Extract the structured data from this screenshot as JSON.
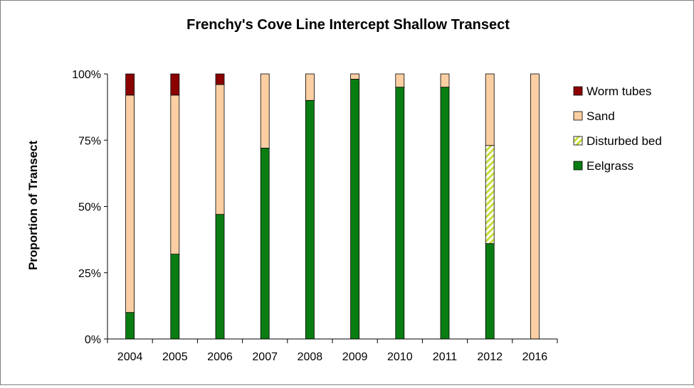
{
  "chart_data": {
    "type": "bar",
    "stacked": true,
    "normalized": true,
    "title": "Frenchy's Cove Line Intercept Shallow Transect",
    "xlabel": "",
    "ylabel": "Proportion of Transect",
    "ylim": [
      0,
      1
    ],
    "yticks": [
      "0%",
      "25%",
      "50%",
      "75%",
      "100%"
    ],
    "ytick_values": [
      0,
      0.25,
      0.5,
      0.75,
      1.0
    ],
    "grid": false,
    "legend_position": "right",
    "categories": [
      "2004",
      "2005",
      "2006",
      "2007",
      "2008",
      "2009",
      "2010",
      "2011",
      "2012",
      "2016"
    ],
    "series": [
      {
        "name": "Eelgrass",
        "color": "#0a7d12",
        "pattern": "solid",
        "values": [
          0.1,
          0.32,
          0.47,
          0.72,
          0.9,
          0.98,
          0.95,
          0.95,
          0.36,
          0.0
        ]
      },
      {
        "name": "Disturbed bed",
        "color": "#d9e86a",
        "pattern": "diagonal-hatch",
        "values": [
          0.0,
          0.0,
          0.0,
          0.0,
          0.0,
          0.0,
          0.0,
          0.0,
          0.37,
          0.0
        ]
      },
      {
        "name": "Sand",
        "color": "#fbcfa3",
        "pattern": "solid",
        "values": [
          0.82,
          0.6,
          0.49,
          0.28,
          0.1,
          0.02,
          0.05,
          0.05,
          0.27,
          1.0
        ]
      },
      {
        "name": "Worm tubes",
        "color": "#8b0000",
        "pattern": "solid",
        "values": [
          0.08,
          0.08,
          0.04,
          0.0,
          0.0,
          0.0,
          0.0,
          0.0,
          0.0,
          0.0
        ]
      }
    ],
    "legend_order": [
      "Worm tubes",
      "Sand",
      "Disturbed bed",
      "Eelgrass"
    ]
  }
}
